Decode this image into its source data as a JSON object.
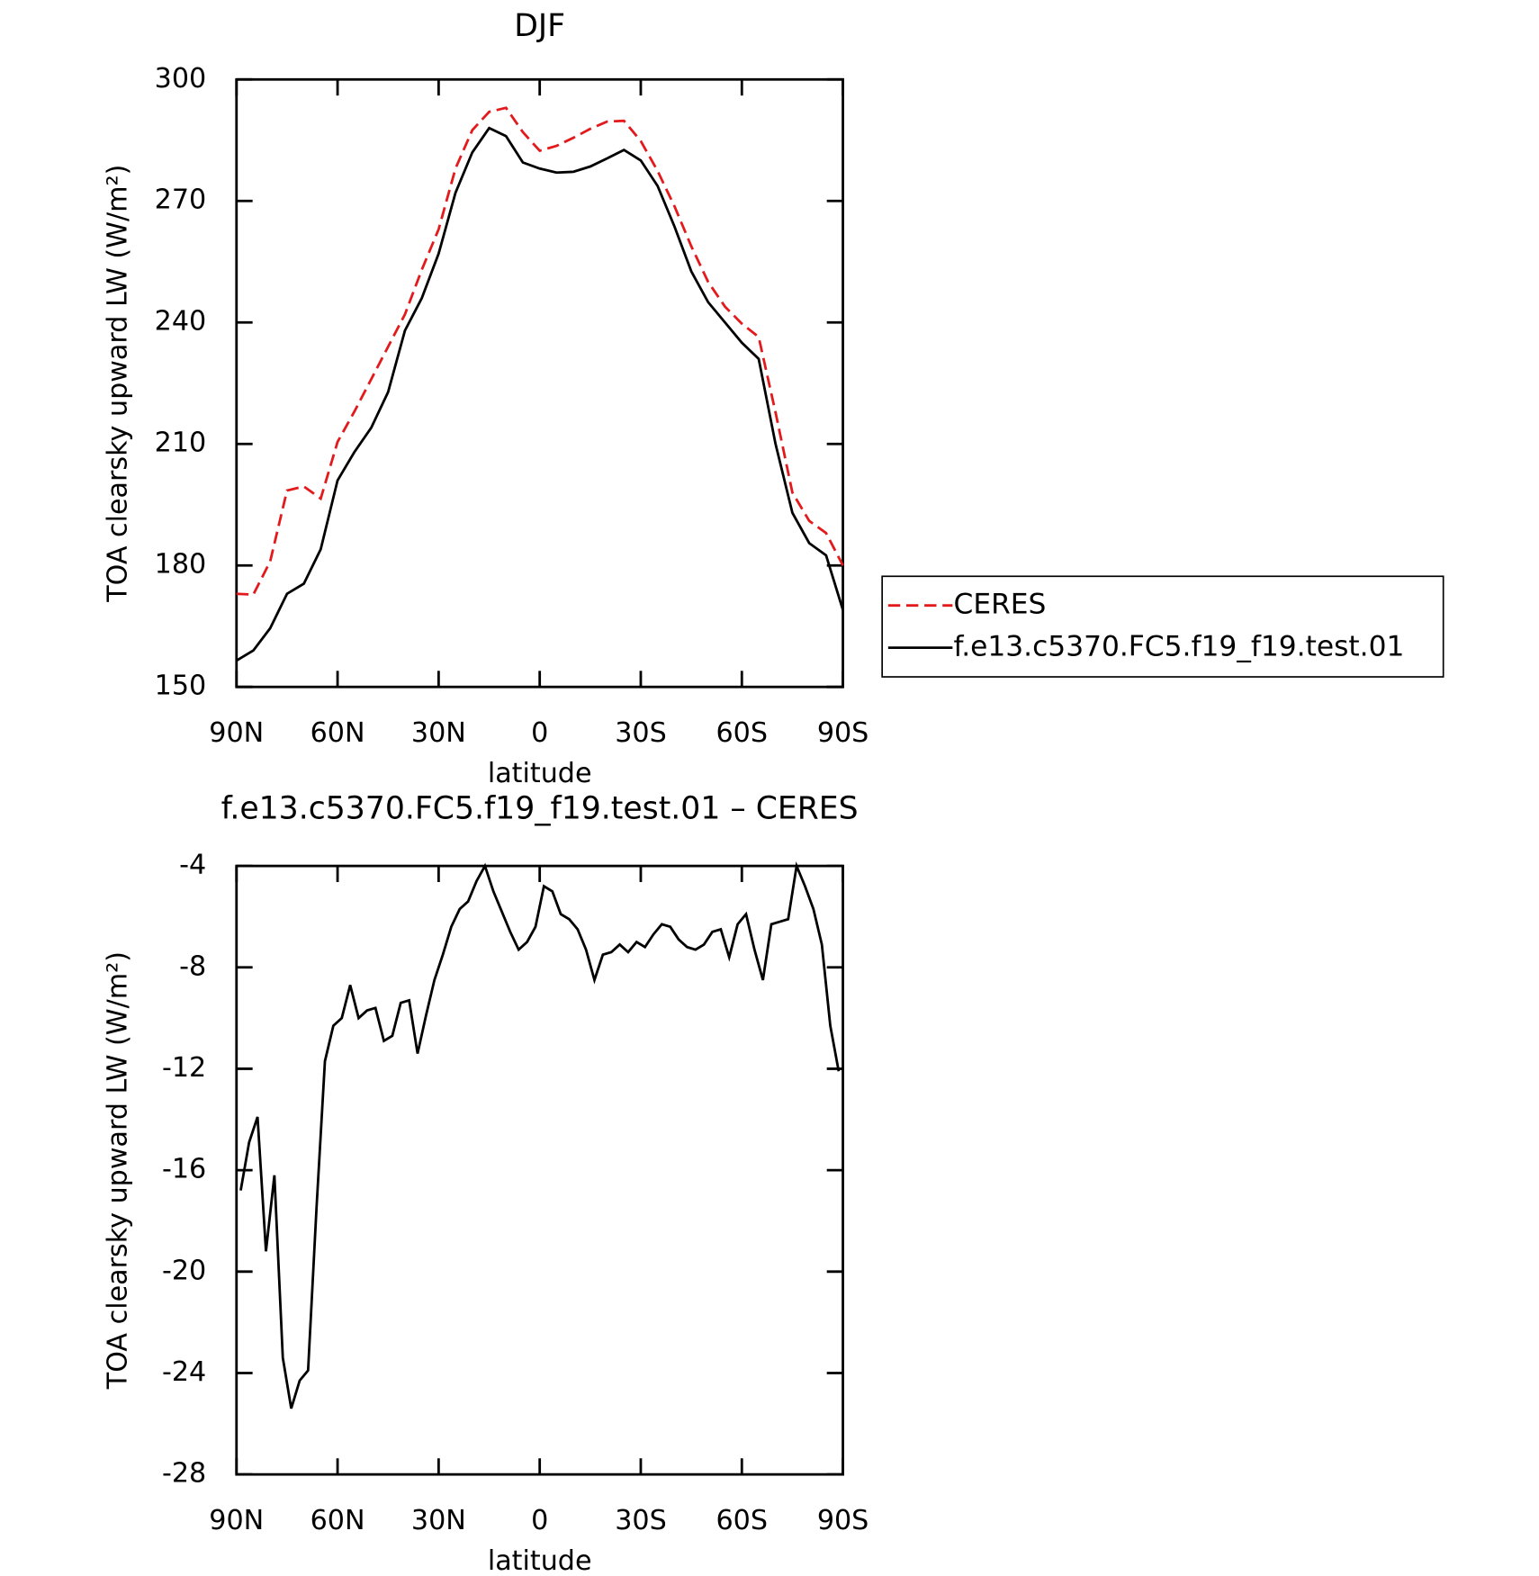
{
  "chart_data": [
    {
      "type": "line",
      "title": "DJF",
      "xlabel": "latitude",
      "ylabel": "TOA clearsky upward LW (W/m²)",
      "xlim": [
        90,
        -90
      ],
      "ylim": [
        150,
        300
      ],
      "xticks": [
        {
          "value": 90,
          "label": "90N"
        },
        {
          "value": 60,
          "label": "60N"
        },
        {
          "value": 30,
          "label": "30N"
        },
        0,
        {
          "value": -30,
          "label": "30S"
        },
        {
          "value": -60,
          "label": "60S"
        },
        {
          "value": -90,
          "label": "90S"
        }
      ],
      "yticks": [
        150,
        180,
        210,
        240,
        270,
        300
      ],
      "legend": "right",
      "x": [
        90,
        85,
        80,
        75,
        70,
        65,
        60,
        55,
        50,
        45,
        40,
        35,
        30,
        25,
        20,
        15,
        10,
        5,
        0,
        -5,
        -10,
        -15,
        -20,
        -25,
        -30,
        -35,
        -40,
        -45,
        -50,
        -55,
        -60,
        -65,
        -70,
        -75,
        -80,
        -85,
        -90
      ],
      "series": [
        {
          "name": "CERES",
          "color": "#e31a1c",
          "dashed": true,
          "values": [
            173,
            172.8,
            181,
            198.5,
            199.5,
            196.5,
            210.5,
            218,
            226,
            234,
            242,
            253,
            263,
            278,
            287.5,
            292,
            293,
            287,
            282.4,
            283.6,
            285.6,
            287.8,
            289.6,
            289.8,
            284.8,
            277.4,
            268.7,
            258.8,
            250,
            243.9,
            239.7,
            236.4,
            217.8,
            198,
            191,
            188,
            180
          ]
        },
        {
          "name": "f.e13.c5370.FC5.f19_f19.test.01",
          "color": "#000000",
          "dashed": false,
          "values": [
            156.5,
            159,
            164.5,
            173,
            175.5,
            184,
            201,
            208,
            214,
            222.8,
            238,
            246,
            257,
            272,
            282,
            288,
            286,
            279.5,
            278,
            277,
            277.2,
            278.5,
            280.5,
            282.6,
            280,
            273.7,
            263.7,
            252.6,
            245,
            240,
            235,
            231,
            210,
            193,
            185.5,
            182.5,
            169
          ]
        }
      ]
    },
    {
      "type": "line",
      "title": "f.e13.c5370.FC5.f19_f19.test.01 – CERES",
      "xlabel": "latitude",
      "ylabel": "TOA clearsky upward LW (W/m²)",
      "xlim": [
        90,
        -90
      ],
      "ylim": [
        -28,
        -4
      ],
      "xticks": [
        {
          "value": 90,
          "label": "90N"
        },
        {
          "value": 60,
          "label": "60N"
        },
        {
          "value": 30,
          "label": "30N"
        },
        0,
        {
          "value": -30,
          "label": "30S"
        },
        {
          "value": -60,
          "label": "60S"
        },
        {
          "value": -90,
          "label": "90S"
        }
      ],
      "yticks": [
        -28,
        -24,
        -20,
        -16,
        -12,
        -8,
        -4
      ],
      "x": [
        88.75,
        86.25,
        83.75,
        81.25,
        78.75,
        76.25,
        73.75,
        71.25,
        68.75,
        66.25,
        63.75,
        61.25,
        58.75,
        56.25,
        53.75,
        51.25,
        48.75,
        46.25,
        43.75,
        41.25,
        38.75,
        36.25,
        33.75,
        31.25,
        28.75,
        26.25,
        23.75,
        21.25,
        18.75,
        16.25,
        13.75,
        11.25,
        8.75,
        6.25,
        3.75,
        1.25,
        -1.25,
        -3.75,
        -6.25,
        -8.75,
        -11.25,
        -13.75,
        -16.25,
        -18.75,
        -21.25,
        -23.75,
        -26.25,
        -28.75,
        -31.25,
        -33.75,
        -36.25,
        -38.75,
        -41.25,
        -43.75,
        -46.25,
        -48.75,
        -51.25,
        -53.75,
        -56.25,
        -58.75,
        -61.25,
        -63.75,
        -66.25,
        -68.75,
        -71.25,
        -73.75,
        -76.25,
        -78.75,
        -81.25,
        -83.75,
        -86.25,
        -88.75
      ],
      "series": [
        {
          "color": "#000000",
          "dashed": false,
          "values": [
            -16.8,
            -14.9,
            -13.9,
            -19.2,
            -16.2,
            -23.4,
            -25.4,
            -24.3,
            -23.9,
            -17.5,
            -11.7,
            -10.3,
            -10,
            -8.7,
            -10,
            -9.7,
            -9.6,
            -10.9,
            -10.7,
            -9.4,
            -9.3,
            -11.4,
            -9.9,
            -8.5,
            -7.5,
            -6.4,
            -5.7,
            -5.4,
            -4.6,
            -4,
            -5,
            -5.8,
            -6.6,
            -7.3,
            -7,
            -6.4,
            -4.8,
            -5,
            -5.9,
            -6.1,
            -6.5,
            -7.3,
            -8.5,
            -7.5,
            -7.4,
            -7.1,
            -7.4,
            -7,
            -7.2,
            -6.7,
            -6.3,
            -6.4,
            -6.9,
            -7.2,
            -7.3,
            -7.1,
            -6.6,
            -6.5,
            -7.6,
            -6.3,
            -5.9,
            -7.3,
            -8.5,
            -6.3,
            -6.2,
            -6.1,
            -4,
            -4.8,
            -5.7,
            -7.1,
            -10.3,
            -12.1
          ]
        }
      ]
    }
  ]
}
